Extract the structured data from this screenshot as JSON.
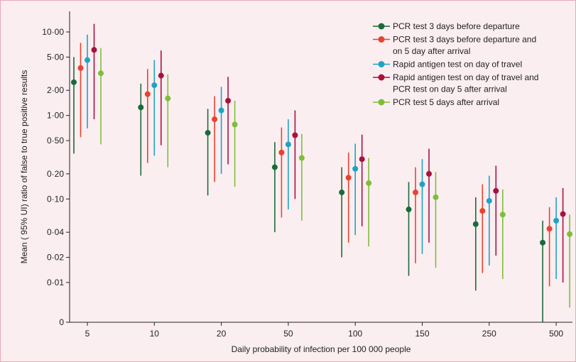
{
  "chart_data": {
    "type": "scatter",
    "subtype": "point-range",
    "xlabel": "Daily probability of infection per 100 000 people",
    "ylabel": "Mean ( 95% UI) ratio of false to true positive results",
    "categories": [
      "5",
      "10",
      "20",
      "50",
      "100",
      "150",
      "250",
      "500"
    ],
    "yscale": "log",
    "yticks": [
      {
        "value": 0,
        "label": "0"
      },
      {
        "value": 0.01,
        "label": "0·01"
      },
      {
        "value": 0.02,
        "label": "0·02"
      },
      {
        "value": 0.04,
        "label": "0·04"
      },
      {
        "value": 0.1,
        "label": "0·10"
      },
      {
        "value": 0.2,
        "label": "0·20"
      },
      {
        "value": 0.5,
        "label": "0·50"
      },
      {
        "value": 1,
        "label": "1·00"
      },
      {
        "value": 2,
        "label": "2·00"
      },
      {
        "value": 5,
        "label": "5·00"
      },
      {
        "value": 10,
        "label": "10·00"
      }
    ],
    "legend_position": "top-right",
    "grid": false,
    "series": [
      {
        "name": "PCR test 3 days before departure",
        "color": "#1b6b3a",
        "mean": [
          2.5,
          1.25,
          0.62,
          0.24,
          0.12,
          0.075,
          0.05,
          0.03
        ],
        "lower": [
          0.35,
          0.19,
          0.11,
          0.04,
          0.02,
          0.012,
          0.008,
          0
        ],
        "upper": [
          5.0,
          2.4,
          1.2,
          0.48,
          0.24,
          0.16,
          0.105,
          0.055
        ]
      },
      {
        "name": "PCR test 3 days before departure and on 5 day after arrival",
        "color": "#e8432e",
        "mean": [
          3.7,
          1.8,
          0.9,
          0.36,
          0.18,
          0.12,
          0.072,
          0.044
        ],
        "lower": [
          0.55,
          0.27,
          0.16,
          0.06,
          0.03,
          0.017,
          0.013,
          0.009
        ],
        "upper": [
          7.4,
          3.6,
          1.7,
          0.72,
          0.36,
          0.24,
          0.15,
          0.08
        ]
      },
      {
        "name": "Rapid antigen test on day of travel",
        "color": "#1fa3c4",
        "mean": [
          4.6,
          2.3,
          1.15,
          0.45,
          0.23,
          0.15,
          0.095,
          0.055
        ],
        "lower": [
          0.7,
          0.33,
          0.2,
          0.075,
          0.037,
          0.022,
          0.016,
          0.011
        ],
        "upper": [
          9.3,
          4.6,
          2.2,
          0.9,
          0.46,
          0.3,
          0.19,
          0.105
        ]
      },
      {
        "name": "Rapid antigen test on day of travel and PCR test on day 5 after arrival",
        "color": "#a8123e",
        "mean": [
          6.1,
          3.0,
          1.5,
          0.58,
          0.3,
          0.2,
          0.125,
          0.066
        ],
        "lower": [
          0.9,
          0.44,
          0.26,
          0.1,
          0.047,
          0.03,
          0.021,
          0.01
        ],
        "upper": [
          12.5,
          6.0,
          2.9,
          1.15,
          0.59,
          0.4,
          0.25,
          0.135
        ]
      },
      {
        "name": "PCR test 5 days after arrival",
        "color": "#7cbf3a",
        "mean": [
          3.2,
          1.6,
          0.78,
          0.31,
          0.155,
          0.105,
          0.065,
          0.038
        ],
        "lower": [
          0.45,
          0.24,
          0.14,
          0.055,
          0.027,
          0.015,
          0.011,
          0.005
        ],
        "upper": [
          6.4,
          3.1,
          1.5,
          0.6,
          0.31,
          0.21,
          0.13,
          0.065
        ]
      }
    ]
  }
}
